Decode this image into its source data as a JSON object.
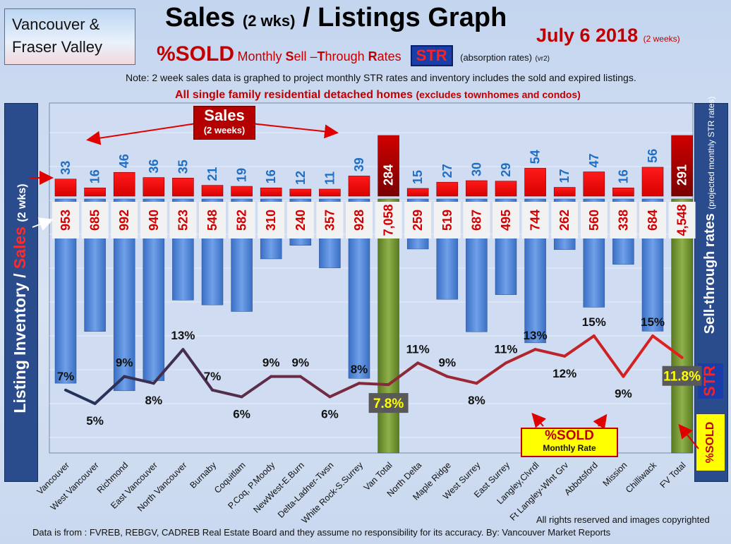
{
  "region_box": {
    "line1": "Vancouver &",
    "line2": "Fraser Valley"
  },
  "title": {
    "main": "Sales",
    "main_small": "(2 wks)",
    "rest": "/ Listings Graph"
  },
  "date": {
    "text": "July 6 2018",
    "small": "(2 weeks)"
  },
  "subtitle": {
    "sold": "%SOLD",
    "sell_through_parts": [
      "Monthly ",
      "S",
      "ell –",
      "T",
      "hrough ",
      "R",
      "ates"
    ],
    "str_badge": "STR",
    "absorption": "(absorption rates)",
    "version": "(vr2)"
  },
  "note": "Note: 2 week sales data is graphed to project monthly STR rates and inventory includes the sold and expired listings.",
  "note2": {
    "main": "All single family residential detached homes",
    "small": "(excludes townhomes and condos)"
  },
  "left_axis_label": {
    "part1": "Listing Inventory /",
    "part2": "Sales",
    "part3": "(2 wks)"
  },
  "right_axis_label": {
    "main": "Sell-through rates",
    "small": "(projected monthly STR rates)"
  },
  "right_badges": {
    "str": "STR",
    "sold": "%SOLD"
  },
  "sales_callout": {
    "big": "Sales",
    "small": "(2 weeks)"
  },
  "sold_box": {
    "big": "%SOLD",
    "small": "Monthly Rate"
  },
  "footer": {
    "rights": "All rights reserved and  images copyrighted",
    "source": "Data is from : FVREB, REBGV, CADREB Real Estate Board and they assume no responsibility for its accuracy. By: Vancouver Market Reports"
  },
  "colors": {
    "sales": "#ff0000",
    "inventory": "#4f86d8",
    "total": "#6b8c2a",
    "line_start": "#24325a",
    "line_end": "#e0201e"
  },
  "chart_data": {
    "type": "bar",
    "categories": [
      "Vancouver",
      "West Vancouver",
      "Richmond",
      "East Vancouver",
      "North Vancouver",
      "Burnaby",
      "Coquitlam",
      "P.Coq, P.Moody",
      "NewWest-E.Burn",
      "Delta-Ladner-Twsn",
      "White Rock-S.Surrey",
      "Van Total",
      "North Delta",
      "Maple Ridge",
      "West Surrey",
      "East Surrey",
      "Langley,Clvrdl",
      "Ft Langley-Wlnt Grv",
      "Abbotsford",
      "Mission",
      "Chilliwack",
      "FV Total"
    ],
    "sales_labels": [
      "33",
      "16",
      "46",
      "36",
      "35",
      "21",
      "19",
      "16",
      "12",
      "11",
      "39",
      "284",
      "15",
      "27",
      "30",
      "29",
      "54",
      "17",
      "47",
      "16",
      "56",
      "291"
    ],
    "sales": [
      33,
      16,
      46,
      36,
      35,
      21,
      19,
      16,
      12,
      11,
      39,
      284,
      15,
      27,
      30,
      29,
      54,
      17,
      47,
      16,
      56,
      291
    ],
    "inventory_labels": [
      "953",
      "685",
      "992",
      "940",
      "523",
      "548",
      "582",
      "310",
      "240",
      "357",
      "928",
      "7,058",
      "259",
      "519",
      "687",
      "495",
      "744",
      "262",
      "560",
      "338",
      "684",
      "4,548"
    ],
    "inventory": [
      953,
      685,
      992,
      940,
      523,
      548,
      582,
      310,
      240,
      357,
      928,
      7058,
      259,
      519,
      687,
      495,
      744,
      262,
      560,
      338,
      684,
      4548
    ],
    "str_labels": [
      "7%",
      "5%",
      "9%",
      "8%",
      "13%",
      "7%",
      "6%",
      "9%",
      "9%",
      "6%",
      "8%",
      "7.8%",
      "11%",
      "9%",
      "8%",
      "11%",
      "13%",
      "12%",
      "15%",
      "9%",
      "15%",
      "11.8%"
    ],
    "str_pct": [
      7,
      5,
      9,
      8,
      13,
      7,
      6,
      9,
      9,
      6,
      8,
      7.8,
      11,
      9,
      8,
      11,
      13,
      12,
      15,
      9,
      15,
      11.8
    ],
    "totals": [
      "Van Total",
      "FV Total"
    ]
  }
}
